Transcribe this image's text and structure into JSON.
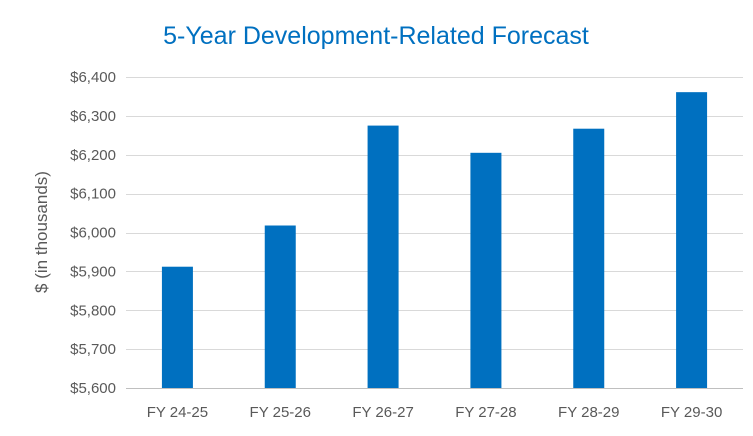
{
  "chart_data": {
    "type": "bar",
    "title": "5-Year Development-Related Forecast",
    "xlabel": "",
    "ylabel": "$ (in thousands)",
    "categories": [
      "FY 24-25",
      "FY 25-26",
      "FY 26-27",
      "FY 27-28",
      "FY 28-29",
      "FY 29-30"
    ],
    "values": [
      5912,
      6018,
      6275,
      6205,
      6267,
      6361
    ],
    "ylim": [
      5600,
      6400
    ],
    "ytick_values": [
      5600,
      5700,
      5800,
      5900,
      6000,
      6100,
      6200,
      6300,
      6400
    ],
    "ytick_labels": [
      "$5,600",
      "$5,700",
      "$5,800",
      "$5,900",
      "$6,000",
      "$6,100",
      "$6,200",
      "$6,300",
      "$6,400"
    ],
    "grid": true,
    "legend": "none",
    "bar_color": "#0070C0",
    "title_color": "#0070C0",
    "text_color": "#595959"
  }
}
